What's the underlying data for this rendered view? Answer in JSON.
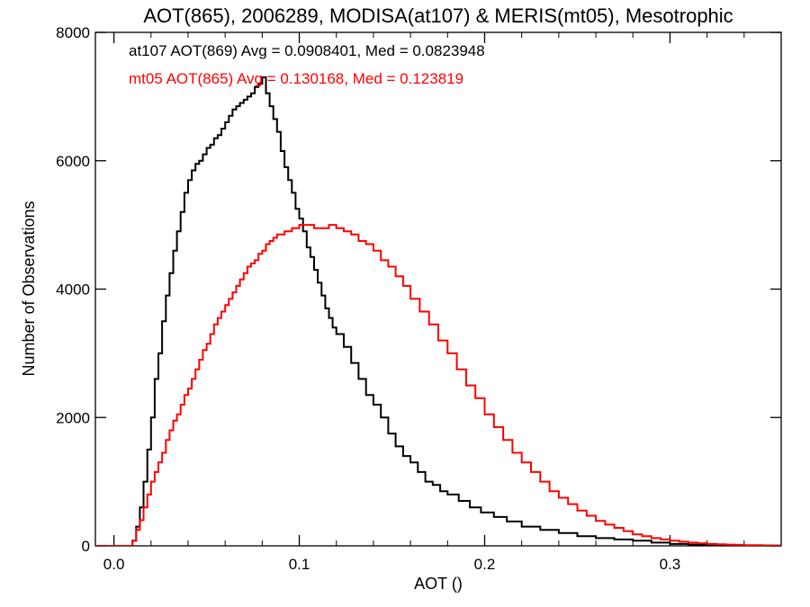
{
  "chart_data": {
    "type": "line",
    "title": "AOT(865), 2006289, MODISA(at107) & MERIS(mt05), Mesotrophic",
    "xlabel": "AOT ()",
    "ylabel": "Number of Observations",
    "xlim": [
      -0.01,
      0.36
    ],
    "ylim": [
      0,
      8000
    ],
    "x_ticks": [
      0.0,
      0.1,
      0.2,
      0.3
    ],
    "x_tick_labels": [
      "0.0",
      "0.1",
      "0.2",
      "0.3"
    ],
    "y_ticks": [
      0,
      2000,
      4000,
      6000,
      8000
    ],
    "y_tick_labels": [
      "0",
      "2000",
      "4000",
      "6000",
      "8000"
    ],
    "grid": false,
    "annotations": [
      {
        "text": "at107 AOT(869) Avg = 0.0908401, Med = 0.0823948",
        "color": "#000000"
      },
      {
        "text": "mt05 AOT(865) Avg = 0.130168, Med = 0.123819",
        "color": "#ff0000"
      }
    ],
    "series": [
      {
        "color": "#000000",
        "x": [
          -0.01,
          0.0,
          0.005,
          0.008,
          0.01,
          0.012,
          0.014,
          0.016,
          0.018,
          0.02,
          0.022,
          0.024,
          0.026,
          0.028,
          0.03,
          0.032,
          0.034,
          0.036,
          0.038,
          0.04,
          0.042,
          0.044,
          0.046,
          0.048,
          0.05,
          0.052,
          0.054,
          0.056,
          0.058,
          0.06,
          0.062,
          0.064,
          0.066,
          0.068,
          0.07,
          0.072,
          0.074,
          0.076,
          0.078,
          0.08,
          0.082,
          0.084,
          0.086,
          0.088,
          0.09,
          0.092,
          0.094,
          0.096,
          0.098,
          0.1,
          0.102,
          0.104,
          0.106,
          0.108,
          0.11,
          0.112,
          0.114,
          0.116,
          0.118,
          0.12,
          0.124,
          0.128,
          0.132,
          0.136,
          0.14,
          0.144,
          0.148,
          0.152,
          0.156,
          0.16,
          0.164,
          0.168,
          0.172,
          0.176,
          0.18,
          0.186,
          0.192,
          0.198,
          0.205,
          0.212,
          0.22,
          0.23,
          0.24,
          0.25,
          0.26,
          0.27,
          0.28,
          0.29,
          0.3,
          0.31,
          0.32,
          0.33,
          0.34,
          0.35,
          0.36
        ],
        "y": [
          0,
          0,
          0,
          0,
          80,
          300,
          600,
          1000,
          1500,
          2000,
          2600,
          3000,
          3500,
          3900,
          4250,
          4600,
          4900,
          5200,
          5500,
          5700,
          5850,
          5950,
          6000,
          6100,
          6200,
          6250,
          6350,
          6400,
          6500,
          6600,
          6700,
          6800,
          6850,
          6900,
          6950,
          7000,
          7050,
          7150,
          7200,
          7300,
          7050,
          6850,
          6650,
          6450,
          6150,
          5900,
          5700,
          5500,
          5250,
          5100,
          4900,
          4650,
          4500,
          4300,
          4100,
          3900,
          3700,
          3550,
          3400,
          3300,
          3100,
          2850,
          2600,
          2350,
          2200,
          2000,
          1750,
          1550,
          1400,
          1300,
          1150,
          1000,
          950,
          850,
          800,
          700,
          600,
          520,
          450,
          380,
          300,
          250,
          200,
          150,
          120,
          100,
          80,
          50,
          30,
          20,
          15,
          10,
          5,
          5,
          0
        ]
      },
      {
        "color": "#ff0000",
        "x": [
          -0.01,
          0.0,
          0.005,
          0.008,
          0.01,
          0.012,
          0.014,
          0.016,
          0.018,
          0.02,
          0.022,
          0.024,
          0.026,
          0.028,
          0.03,
          0.032,
          0.034,
          0.036,
          0.038,
          0.04,
          0.042,
          0.044,
          0.046,
          0.048,
          0.05,
          0.052,
          0.054,
          0.056,
          0.058,
          0.06,
          0.062,
          0.064,
          0.066,
          0.068,
          0.07,
          0.072,
          0.074,
          0.076,
          0.078,
          0.08,
          0.082,
          0.084,
          0.086,
          0.088,
          0.09,
          0.092,
          0.094,
          0.096,
          0.098,
          0.1,
          0.104,
          0.108,
          0.112,
          0.116,
          0.12,
          0.124,
          0.128,
          0.132,
          0.136,
          0.14,
          0.144,
          0.148,
          0.152,
          0.156,
          0.16,
          0.165,
          0.17,
          0.175,
          0.18,
          0.185,
          0.19,
          0.195,
          0.2,
          0.205,
          0.21,
          0.215,
          0.22,
          0.225,
          0.23,
          0.235,
          0.24,
          0.245,
          0.25,
          0.255,
          0.26,
          0.265,
          0.27,
          0.275,
          0.28,
          0.285,
          0.29,
          0.295,
          0.3,
          0.305,
          0.31,
          0.315,
          0.32,
          0.325,
          0.33,
          0.335,
          0.34,
          0.35,
          0.36
        ],
        "y": [
          0,
          0,
          0,
          0,
          80,
          250,
          400,
          600,
          800,
          1000,
          1150,
          1300,
          1450,
          1650,
          1800,
          1950,
          2050,
          2200,
          2350,
          2450,
          2600,
          2750,
          2900,
          3050,
          3150,
          3300,
          3450,
          3550,
          3650,
          3750,
          3850,
          3950,
          4050,
          4150,
          4250,
          4350,
          4400,
          4450,
          4550,
          4600,
          4700,
          4750,
          4800,
          4850,
          4850,
          4900,
          4900,
          4950,
          4950,
          5000,
          5000,
          4950,
          4950,
          5000,
          4950,
          4900,
          4850,
          4750,
          4700,
          4600,
          4450,
          4350,
          4200,
          4050,
          3850,
          3650,
          3450,
          3200,
          3000,
          2750,
          2500,
          2300,
          2050,
          1850,
          1650,
          1450,
          1300,
          1150,
          1000,
          850,
          750,
          650,
          550,
          470,
          390,
          330,
          280,
          230,
          180,
          150,
          120,
          100,
          80,
          65,
          50,
          40,
          30,
          25,
          20,
          15,
          10,
          5,
          0
        ]
      }
    ]
  }
}
